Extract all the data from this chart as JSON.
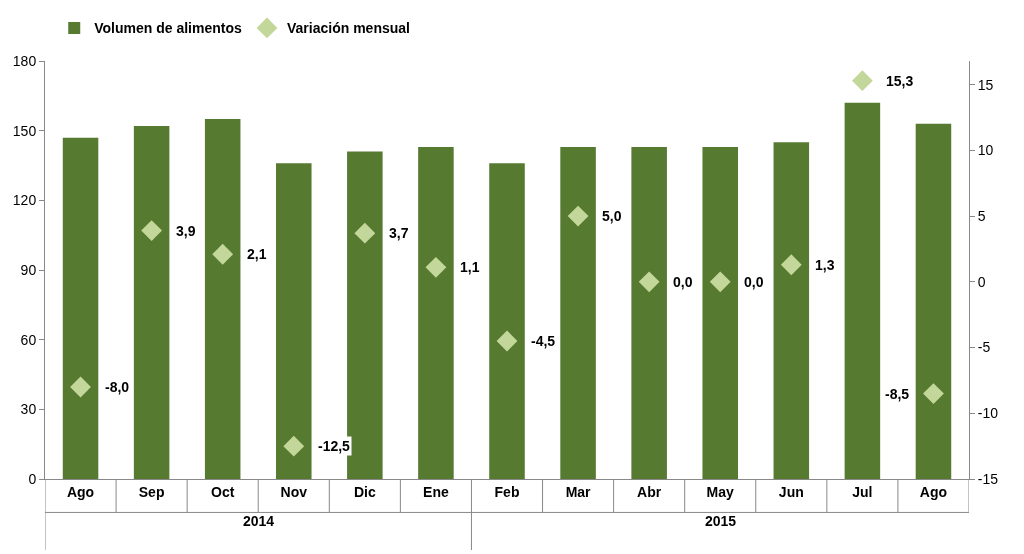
{
  "chart_data": {
    "type": "bar",
    "categories": [
      "Ago",
      "Sep",
      "Oct",
      "Nov",
      "Dic",
      "Ene",
      "Feb",
      "Mar",
      "Abr",
      "May",
      "Jun",
      "Jul",
      "Ago"
    ],
    "series": [
      {
        "name": "Volumen de alimentos",
        "color": "#567a30",
        "values": [
          147,
          152,
          155,
          136,
          141,
          143,
          136,
          143,
          143,
          143,
          145,
          162,
          153
        ]
      },
      {
        "name": "Variación mensual",
        "type": "scatter",
        "axis": "y2",
        "color": "#c4d79b",
        "values": [
          -8.0,
          3.9,
          2.1,
          -12.5,
          3.7,
          1.1,
          -4.5,
          5.0,
          0.0,
          0.0,
          1.3,
          15.3,
          -8.5
        ],
        "value_labels": [
          "-8,0",
          "3,9",
          "2,1",
          "-12,5",
          "3,7",
          "1,1",
          "-4,5",
          "5,0",
          "0,0",
          "0,0",
          "1,3",
          "15,3",
          "-8,5"
        ]
      }
    ],
    "ylim": [
      0,
      180
    ],
    "yticks": [
      0,
      30,
      60,
      90,
      120,
      150,
      180
    ],
    "y2lim": [
      -15,
      16.8
    ],
    "y2ticks": [
      -15,
      -10,
      -5,
      0,
      5,
      10,
      15
    ],
    "marker": "diamond",
    "grid": false,
    "legend": "top left",
    "annotations": [
      "2014",
      "2015"
    ]
  }
}
